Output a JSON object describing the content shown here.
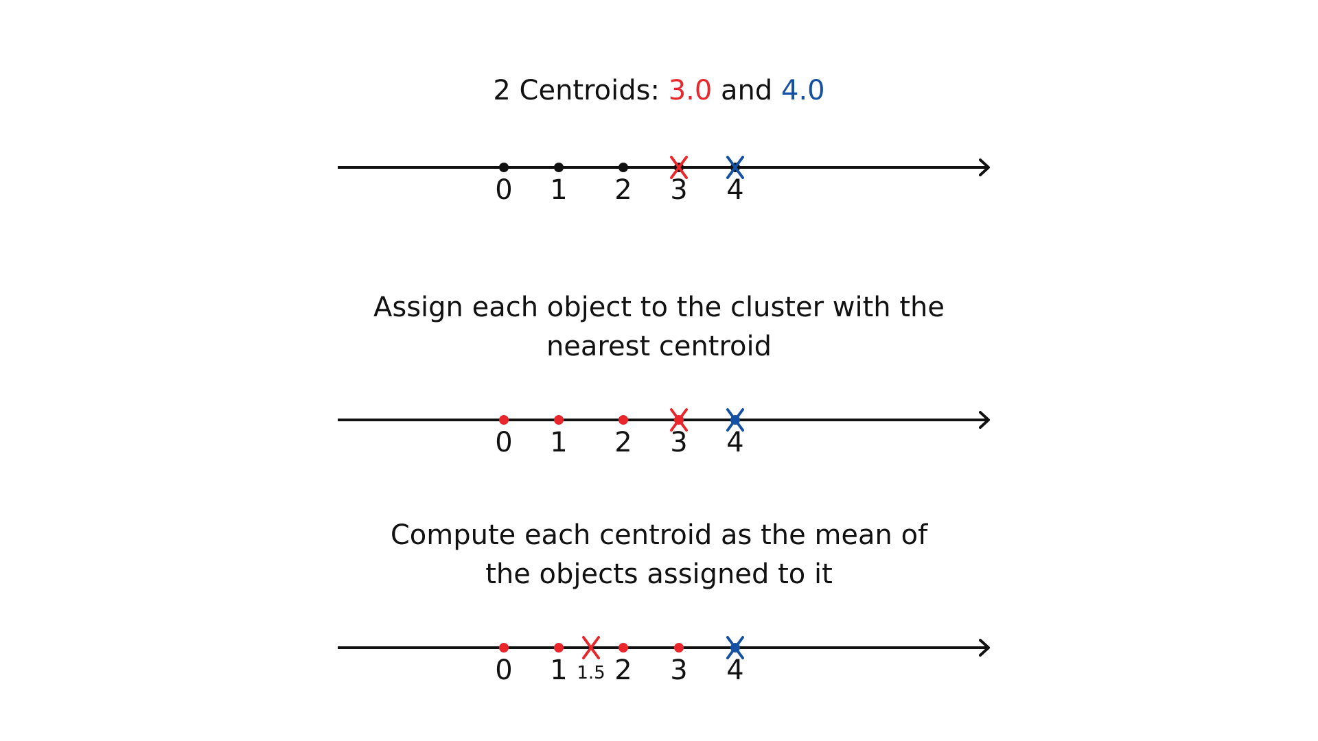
{
  "headings": {
    "step1": {
      "prefix": "2 Centroids: ",
      "centroid_a": "3.0",
      "joiner": " and ",
      "centroid_b": "4.0"
    },
    "step2": {
      "line1": "Assign each object to the cluster with the",
      "line2": "nearest centroid"
    },
    "step3": {
      "line1": "Compute each centroid as the mean of",
      "line2": "the objects assigned to it"
    }
  },
  "colors": {
    "axis": "#111111",
    "unassigned": "#111111",
    "cluster_a": "#e8262b",
    "cluster_b": "#1450a3"
  },
  "diagrams": [
    {
      "name": "initial-centroids",
      "ticks": [
        "0",
        "1",
        "2",
        "3",
        "4"
      ],
      "points": [
        {
          "value": 0,
          "cluster": "none"
        },
        {
          "value": 1,
          "cluster": "none"
        },
        {
          "value": 2,
          "cluster": "none"
        },
        {
          "value": 3,
          "cluster": "none"
        },
        {
          "value": 4,
          "cluster": "none"
        }
      ],
      "centroids": [
        {
          "value": 3.0,
          "cluster": "a",
          "label": ""
        },
        {
          "value": 4.0,
          "cluster": "b",
          "label": ""
        }
      ]
    },
    {
      "name": "assignment",
      "ticks": [
        "0",
        "1",
        "2",
        "3",
        "4"
      ],
      "points": [
        {
          "value": 0,
          "cluster": "a"
        },
        {
          "value": 1,
          "cluster": "a"
        },
        {
          "value": 2,
          "cluster": "a"
        },
        {
          "value": 3,
          "cluster": "a"
        },
        {
          "value": 4,
          "cluster": "b"
        }
      ],
      "centroids": [
        {
          "value": 3.0,
          "cluster": "a",
          "label": ""
        },
        {
          "value": 4.0,
          "cluster": "b",
          "label": ""
        }
      ]
    },
    {
      "name": "update",
      "ticks": [
        "0",
        "1",
        "2",
        "3",
        "4"
      ],
      "points": [
        {
          "value": 0,
          "cluster": "a"
        },
        {
          "value": 1,
          "cluster": "a"
        },
        {
          "value": 2,
          "cluster": "a"
        },
        {
          "value": 3,
          "cluster": "a"
        },
        {
          "value": 4,
          "cluster": "b"
        }
      ],
      "centroids": [
        {
          "value": 1.5,
          "cluster": "a",
          "label": "1.5"
        },
        {
          "value": 4.0,
          "cluster": "b",
          "label": ""
        }
      ]
    }
  ]
}
